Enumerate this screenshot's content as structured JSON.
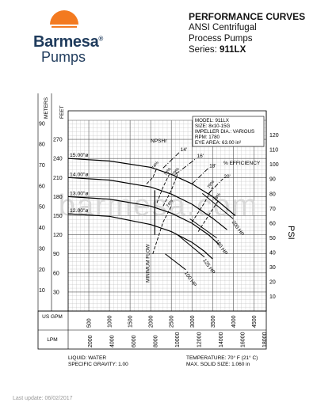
{
  "brand": {
    "name": "Barmesa",
    "registered": "®",
    "sub": "Pumps"
  },
  "header": {
    "title": "PERFORMANCE CURVES",
    "line1": "ANSI Centrifugal",
    "line2": "Process Pumps",
    "series_label": "Series:",
    "series_value": "911LX"
  },
  "info_box": {
    "model": "MODEL: 911LX",
    "size": "SIZE: 8x10-15G",
    "impeller": "IMPELLER DIA.: VARIOUS",
    "rpm": "RPM: 1780",
    "eye_area": "EYE AREA: 63.00 in²"
  },
  "footer": {
    "liquid": "LIQUID: WATER",
    "gravity": "SPECIFIC GRAVITY: 1.00",
    "temperature": "TEMPERATURE: 70° F (21° C)",
    "solid": "MAX. SOLID SIZE: 1.060 in"
  },
  "last_update": "Last update: 06/02/2017",
  "watermark": "barmesa.com",
  "chart_data": {
    "type": "line",
    "x_unit_us": "US GPM",
    "x_unit_metric": "LPM",
    "x_ticks_gpm": [
      500,
      1000,
      1500,
      2000,
      2500,
      3000,
      3500,
      4000,
      4500
    ],
    "x_ticks_lpm": [
      2000,
      4000,
      6000,
      8000,
      10000,
      12000,
      14000,
      16000,
      18000
    ],
    "y_left_meters": [
      10,
      20,
      30,
      40,
      50,
      60,
      70,
      80,
      90
    ],
    "y_left_feet": [
      30,
      60,
      90,
      120,
      150,
      180,
      210,
      240,
      270
    ],
    "y_right_psi": [
      10,
      20,
      30,
      40,
      50,
      60,
      70,
      80,
      90,
      100,
      110,
      120
    ],
    "axis_left_meters_label": "METERS",
    "axis_left_feet_label": "FEET",
    "axis_right_label": "PSI",
    "xlim_gpm": [
      0,
      4800
    ],
    "ylim_ft": [
      0,
      300
    ],
    "series": [
      {
        "name": "15.00\"ø",
        "x_gpm": [
          0,
          1000,
          2000,
          2500,
          3000,
          3500,
          4050
        ],
        "y_ft": [
          240,
          236,
          226,
          215,
          200,
          180,
          150
        ]
      },
      {
        "name": "14.00\"ø",
        "x_gpm": [
          0,
          1000,
          2000,
          2500,
          3000,
          3500,
          3850
        ],
        "y_ft": [
          210,
          206,
          195,
          184,
          168,
          146,
          128
        ]
      },
      {
        "name": "13.00\"ø",
        "x_gpm": [
          0,
          1000,
          2000,
          2500,
          3000,
          3400,
          3650
        ],
        "y_ft": [
          180,
          176,
          165,
          154,
          138,
          120,
          105
        ]
      },
      {
        "name": "12.00\"ø",
        "x_gpm": [
          0,
          1000,
          2000,
          2500,
          3000,
          3300,
          3500
        ],
        "y_ft": [
          153,
          149,
          136,
          125,
          108,
          94,
          82
        ]
      }
    ],
    "efficiency_label": "% EFFICIENCY",
    "efficiency": [
      {
        "label": "74",
        "x_gpm": [
          1900,
          2050,
          2150
        ],
        "y_ft": [
          200,
          210,
          225
        ]
      },
      {
        "label": "78",
        "x_gpm": [
          2150,
          2300,
          2450
        ],
        "y_ft": [
          170,
          195,
          215
        ]
      },
      {
        "label": "79",
        "x_gpm": [
          2300,
          2500,
          2650
        ],
        "y_ft": [
          165,
          190,
          215
        ]
      },
      {
        "label": "79",
        "x_gpm": [
          3000,
          3300,
          3500
        ],
        "y_ft": [
          140,
          170,
          195
        ]
      },
      {
        "label": "78",
        "x_gpm": [
          3150,
          3400,
          3650
        ],
        "y_ft": [
          125,
          150,
          175
        ]
      },
      {
        "label": "74",
        "x_gpm": [
          2050,
          2200,
          2300,
          2500
        ],
        "y_ft": [
          90,
          120,
          140,
          165
        ]
      }
    ],
    "npsh_label": "NPSHr",
    "npsh": [
      {
        "label": "14'",
        "x_gpm": [
          2300,
          2700
        ],
        "y_ft": [
          225,
          250
        ]
      },
      {
        "label": "16'",
        "x_gpm": [
          2600,
          3100
        ],
        "y_ft": [
          215,
          240
        ]
      },
      {
        "label": "18'",
        "x_gpm": [
          3000,
          3400
        ],
        "y_ft": [
          200,
          225
        ]
      },
      {
        "label": "20'",
        "x_gpm": [
          3400,
          3750
        ],
        "y_ft": [
          185,
          208
        ]
      }
    ],
    "horsepower": [
      {
        "label": "100 HP",
        "x_gpm": [
          2350,
          2850
        ],
        "y_ft": [
          90,
          65
        ]
      },
      {
        "label": "125 HP",
        "x_gpm": [
          2650,
          3300
        ],
        "y_ft": [
          120,
          85
        ]
      },
      {
        "label": "150 HP",
        "x_gpm": [
          2950,
          3600
        ],
        "y_ft": [
          145,
          115
        ]
      },
      {
        "label": "200 HP",
        "x_gpm": [
          3250,
          4000
        ],
        "y_ft": [
          185,
          145
        ]
      }
    ],
    "min_flow_label": "MINIMUM FLOW",
    "min_flow_gpm": 2100,
    "grid": true
  }
}
